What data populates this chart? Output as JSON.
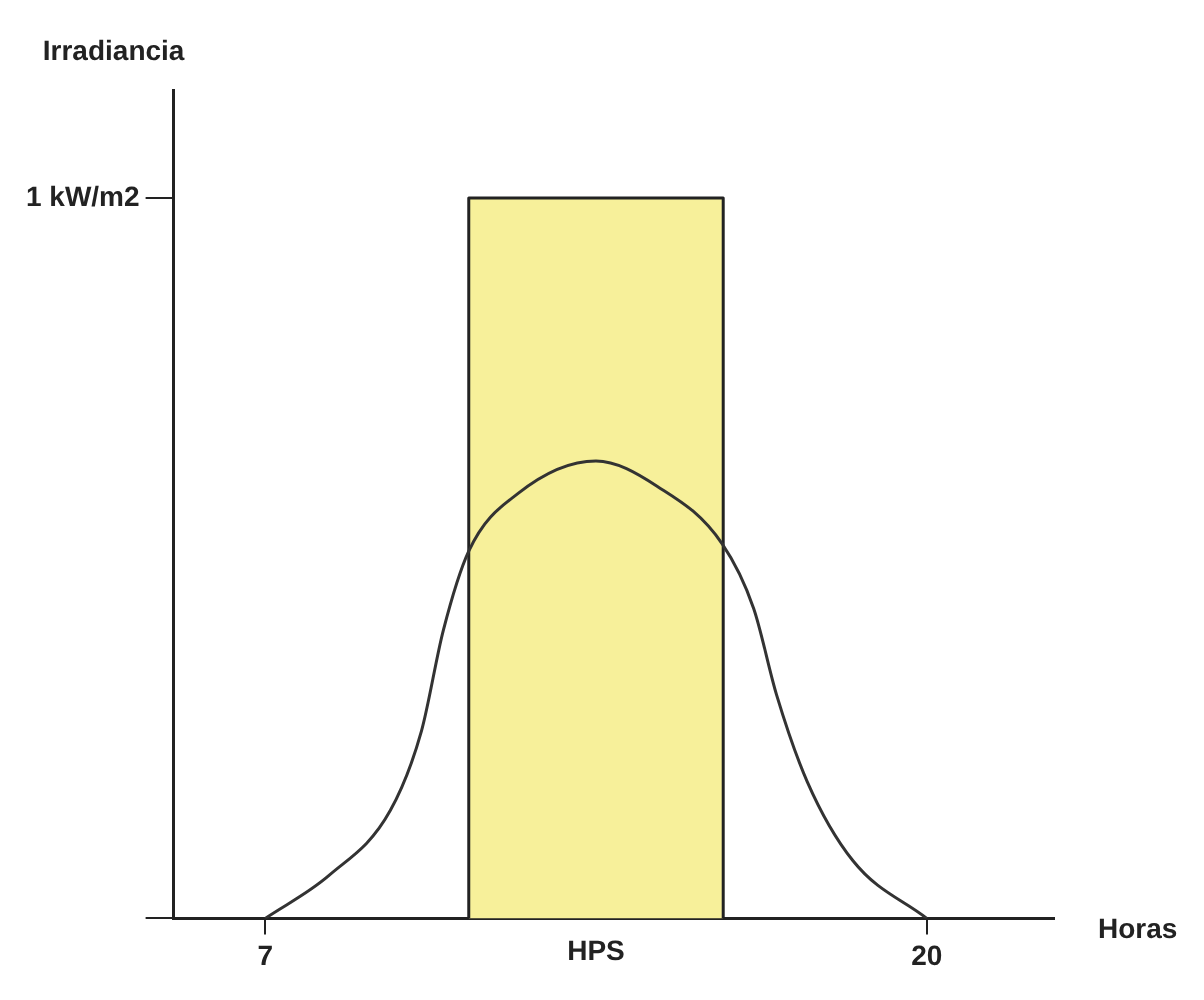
{
  "chart_data": {
    "type": "line",
    "xlabel": "Horas",
    "ylabel": "Irradiancia",
    "xlim": [
      5.2,
      22.5
    ],
    "xticks": [
      7,
      20
    ],
    "ylim": [
      0,
      1.15
    ],
    "yticks": [
      {
        "value": 0,
        "label": null
      },
      {
        "value": 1,
        "label": "1 kW/m2"
      }
    ],
    "grid": false,
    "legend": false,
    "marker": "none",
    "line_style": "solid",
    "series": [
      {
        "name": "HPS",
        "type": "area",
        "color": "#f7f09a",
        "x": [
          11,
          11,
          16,
          16
        ],
        "values": [
          0,
          1,
          1,
          0
        ]
      },
      {
        "color": "#333333",
        "x": [
          7,
          8.26,
          9.46,
          10.07,
          10.5,
          11.0,
          11.97,
          13.5,
          14.7,
          15.98,
          16.6,
          17.05,
          17.65,
          18.55,
          20
        ],
        "values": [
          0,
          0.06,
          0.15,
          0.26,
          0.4,
          0.51,
          0.59,
          0.635,
          0.6,
          0.52,
          0.43,
          0.31,
          0.19,
          0.08,
          0
        ]
      }
    ]
  }
}
